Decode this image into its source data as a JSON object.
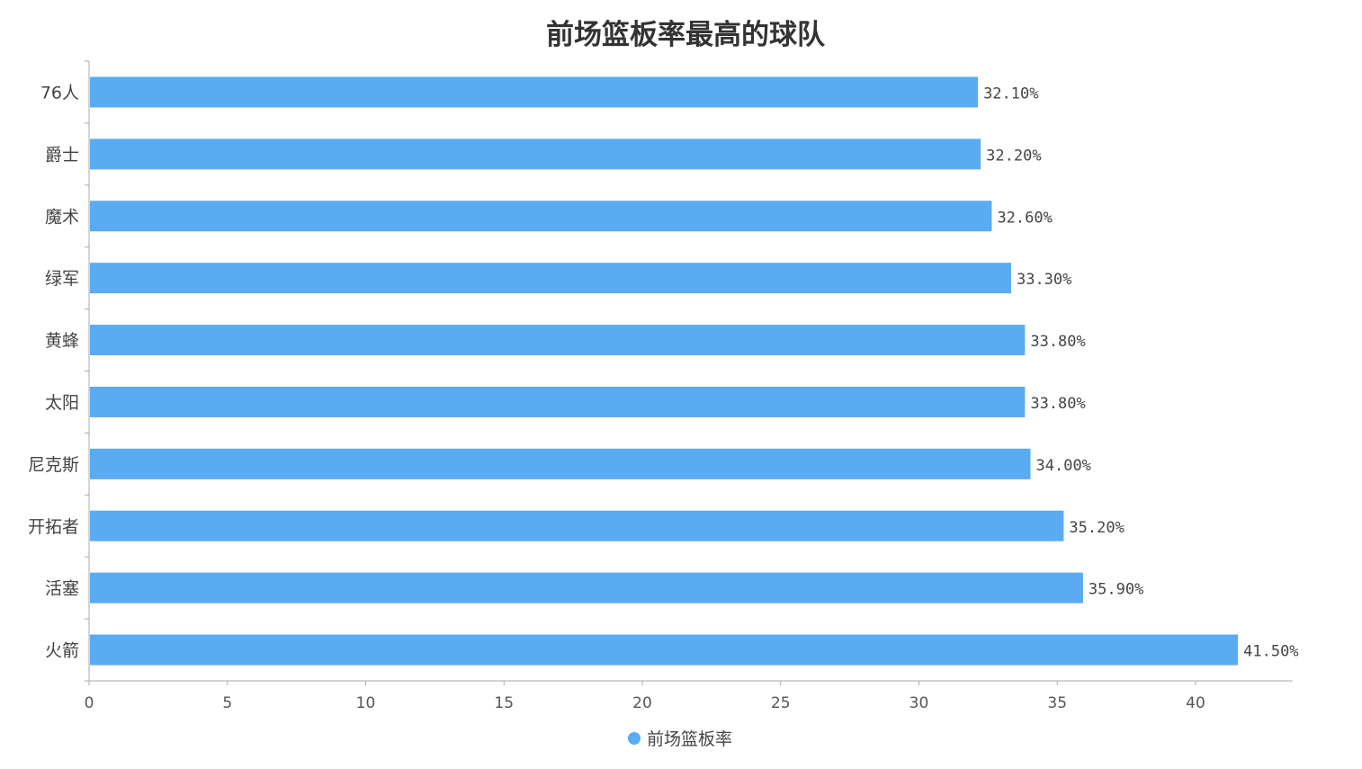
{
  "chart_data": {
    "type": "bar",
    "orientation": "horizontal",
    "title": "前场篮板率最高的球队",
    "categories": [
      "76人",
      "爵士",
      "魔术",
      "绿军",
      "黄蜂",
      "太阳",
      "尼克斯",
      "开拓者",
      "活塞",
      "火箭"
    ],
    "series": [
      {
        "name": "前场篮板率",
        "values": [
          32.1,
          32.2,
          32.6,
          33.3,
          33.8,
          33.8,
          34.0,
          35.2,
          35.9,
          41.5
        ],
        "color": "#5aabf2"
      }
    ],
    "data_labels": [
      "32.10%",
      "32.20%",
      "32.60%",
      "33.30%",
      "33.80%",
      "33.80%",
      "34.00%",
      "35.20%",
      "35.90%",
      "41.50%"
    ],
    "xticks": [
      "0",
      "5",
      "10",
      "15",
      "20",
      "25",
      "30",
      "35",
      "40"
    ],
    "xlim": [
      0,
      43.5
    ],
    "xlabel": "",
    "ylabel": "",
    "legend": {
      "position": "bottom-center",
      "label": "前场篮板率"
    },
    "grid": false
  }
}
